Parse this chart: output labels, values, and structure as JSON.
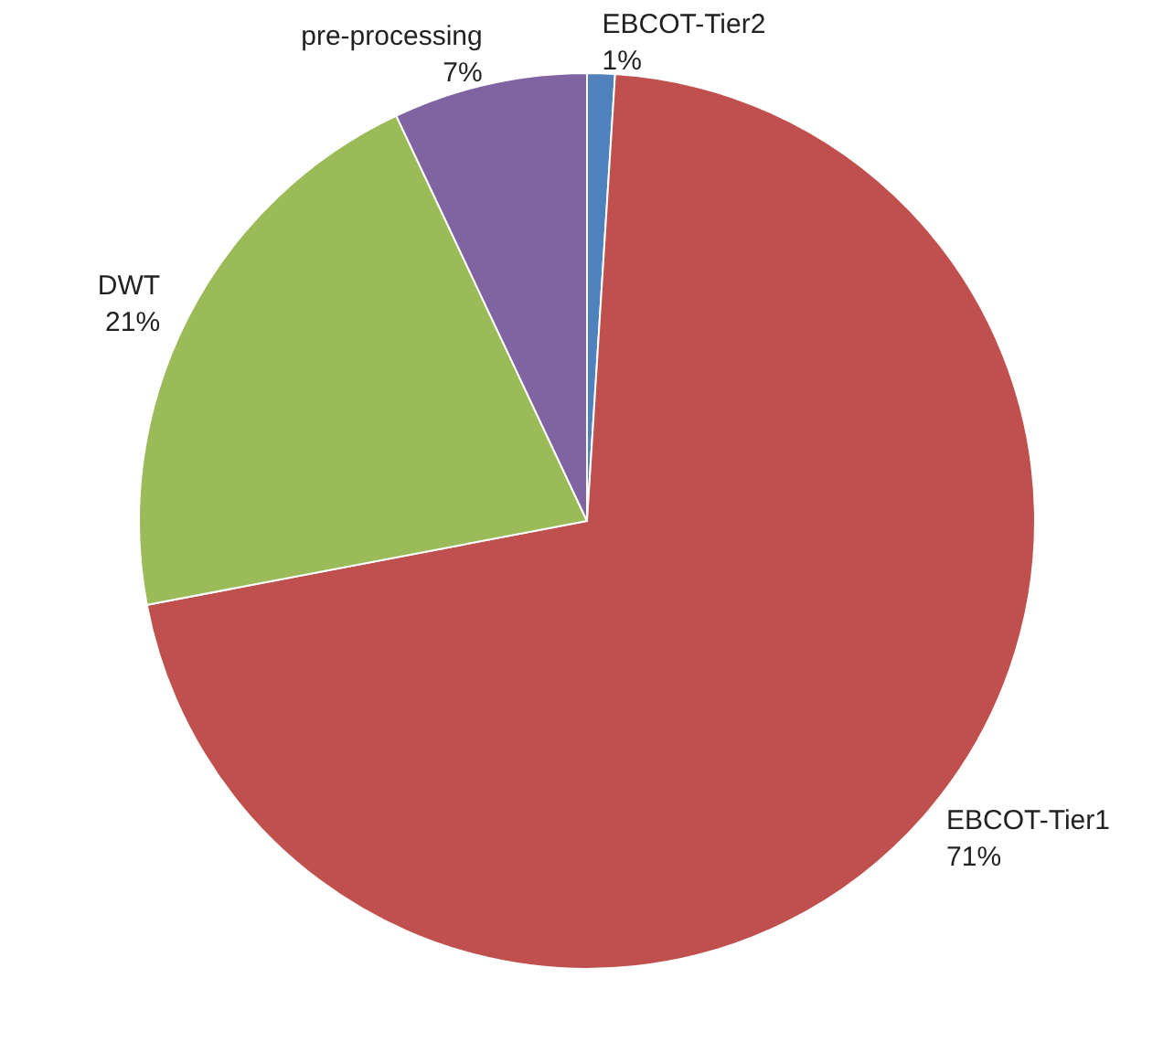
{
  "chart_data": {
    "type": "pie",
    "categories": [
      "EBCOT-Tier2",
      "EBCOT-Tier1",
      "DWT",
      "pre-processing"
    ],
    "values": [
      1,
      71,
      21,
      7
    ],
    "value_labels": [
      "1%",
      "71%",
      "21%",
      "7%"
    ],
    "colors": [
      "#4f81bd",
      "#c0504d",
      "#9bbb59",
      "#8064a2"
    ]
  }
}
